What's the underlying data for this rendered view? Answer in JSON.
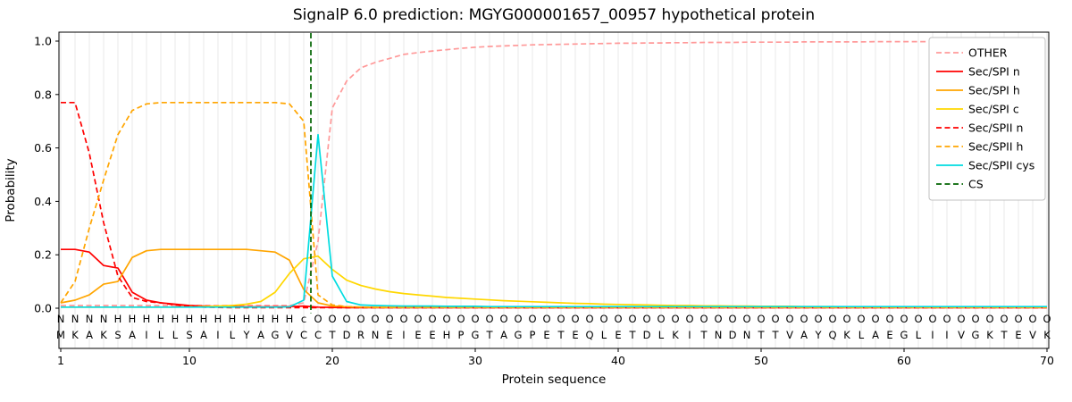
{
  "chart_data": {
    "type": "line",
    "title": "SignalP 6.0 prediction: MGYG000001657_00957 hypothetical protein",
    "xlabel": "Protein sequence",
    "ylabel": "Probability",
    "xticks": [
      1,
      10,
      20,
      30,
      40,
      50,
      60,
      70
    ],
    "yticks": [
      0.0,
      0.2,
      0.4,
      0.6,
      0.8,
      1.0
    ],
    "ylim": [
      -0.16,
      1.03
    ],
    "grid": "vertical-per-residue",
    "legend_position": "upper right",
    "colors": {
      "grid": "#e8e8e8"
    },
    "sequence": "MKAKSAILLSAILYAGVCCTDRNEIEEHPGTAGPETEQLETDLKITNDNTTVAYQKLAEGLIIVGKTEVK",
    "region_annotation": "NNNNHHHHHHHHHHHHHcOOOOOOOOOOOOOOOOOOOOOOOOOOOOOOOOOOOOOOOOOOOOOOOOOOOO",
    "annotation_colors": {
      "N": "#ff0000",
      "H": "#ffa500",
      "c": "#00dce0",
      "O": "#8c8c8c"
    },
    "cs_label": "CS",
    "cs_color": "#006400",
    "cs_position": 18.5,
    "series": [
      {
        "name": "OTHER",
        "color": "#ff9999",
        "dash": true,
        "values": [
          0.01,
          0.01,
          0.01,
          0.01,
          0.01,
          0.01,
          0.01,
          0.01,
          0.01,
          0.01,
          0.01,
          0.01,
          0.01,
          0.01,
          0.01,
          0.01,
          0.01,
          0.02,
          0.25,
          0.75,
          0.85,
          0.9,
          0.92,
          0.935,
          0.95,
          0.957,
          0.963,
          0.968,
          0.973,
          0.977,
          0.98,
          0.982,
          0.984,
          0.986,
          0.987,
          0.988,
          0.989,
          0.99,
          0.991,
          0.992,
          0.992,
          0.993,
          0.993,
          0.994,
          0.994,
          0.995,
          0.995,
          0.995,
          0.996,
          0.996,
          0.996,
          0.996,
          0.997,
          0.997,
          0.997,
          0.997,
          0.997,
          0.998,
          0.998,
          0.998,
          0.998,
          0.998,
          0.998,
          0.998,
          0.998,
          0.998,
          0.998,
          0.998,
          0.998,
          0.998
        ]
      },
      {
        "name": "Sec/SPI n",
        "color": "#ff0000",
        "dash": false,
        "values": [
          0.22,
          0.22,
          0.21,
          0.16,
          0.15,
          0.06,
          0.03,
          0.02,
          0.015,
          0.01,
          0.008,
          0.007,
          0.006,
          0.005,
          0.005,
          0.005,
          0.006,
          0.008,
          0.004,
          0.003,
          0.002,
          0.002,
          0.002,
          0.002,
          0.002,
          0.002,
          0.002,
          0.002,
          0.002,
          0.002,
          0.002,
          0.002,
          0.002,
          0.002,
          0.002,
          0.002,
          0.002,
          0.002,
          0.002,
          0.002,
          0.002,
          0.002,
          0.002,
          0.002,
          0.002,
          0.002,
          0.002,
          0.002,
          0.002,
          0.002,
          0.002,
          0.002,
          0.002,
          0.002,
          0.002,
          0.002,
          0.002,
          0.002,
          0.002,
          0.002,
          0.002,
          0.002,
          0.002,
          0.002,
          0.002,
          0.002,
          0.002,
          0.002,
          0.002,
          0.002
        ]
      },
      {
        "name": "Sec/SPI h",
        "color": "#ffa500",
        "dash": false,
        "values": [
          0.02,
          0.03,
          0.05,
          0.09,
          0.1,
          0.19,
          0.215,
          0.22,
          0.22,
          0.22,
          0.22,
          0.22,
          0.22,
          0.22,
          0.215,
          0.21,
          0.18,
          0.07,
          0.02,
          0.008,
          0.005,
          0.004,
          0.003,
          0.003,
          0.003,
          0.003,
          0.003,
          0.003,
          0.003,
          0.003,
          0.003,
          0.003,
          0.003,
          0.003,
          0.003,
          0.003,
          0.003,
          0.003,
          0.003,
          0.003,
          0.003,
          0.003,
          0.003,
          0.003,
          0.003,
          0.003,
          0.003,
          0.003,
          0.003,
          0.003,
          0.003,
          0.003,
          0.003,
          0.003,
          0.003,
          0.003,
          0.003,
          0.003,
          0.003,
          0.003,
          0.003,
          0.003,
          0.003,
          0.003,
          0.003,
          0.003,
          0.003,
          0.003,
          0.003,
          0.003
        ]
      },
      {
        "name": "Sec/SPI c",
        "color": "#ffd700",
        "dash": false,
        "values": [
          0.004,
          0.004,
          0.004,
          0.004,
          0.004,
          0.004,
          0.004,
          0.004,
          0.004,
          0.005,
          0.006,
          0.008,
          0.01,
          0.015,
          0.025,
          0.06,
          0.13,
          0.185,
          0.195,
          0.145,
          0.105,
          0.085,
          0.072,
          0.062,
          0.055,
          0.05,
          0.045,
          0.04,
          0.037,
          0.034,
          0.031,
          0.028,
          0.026,
          0.024,
          0.022,
          0.02,
          0.018,
          0.017,
          0.015,
          0.014,
          0.013,
          0.012,
          0.011,
          0.01,
          0.01,
          0.009,
          0.009,
          0.008,
          0.008,
          0.007,
          0.007,
          0.007,
          0.006,
          0.006,
          0.006,
          0.005,
          0.005,
          0.005,
          0.005,
          0.005,
          0.004,
          0.004,
          0.004,
          0.004,
          0.004,
          0.004,
          0.004,
          0.004,
          0.004,
          0.004
        ]
      },
      {
        "name": "Sec/SPII n",
        "color": "#ff0000",
        "dash": true,
        "values": [
          0.77,
          0.77,
          0.58,
          0.32,
          0.12,
          0.04,
          0.025,
          0.02,
          0.012,
          0.006,
          0.004,
          0.003,
          0.002,
          0.002,
          0.002,
          0.002,
          0.002,
          0.002,
          0.002,
          0.002,
          0.002,
          0.002,
          0.002,
          0.002,
          0.002,
          0.002,
          0.002,
          0.002,
          0.002,
          0.002,
          0.002,
          0.002,
          0.002,
          0.002,
          0.002,
          0.002,
          0.002,
          0.002,
          0.002,
          0.002,
          0.002,
          0.002,
          0.002,
          0.002,
          0.002,
          0.002,
          0.002,
          0.002,
          0.002,
          0.002,
          0.002,
          0.002,
          0.002,
          0.002,
          0.002,
          0.002,
          0.002,
          0.002,
          0.002,
          0.002,
          0.002,
          0.002,
          0.002,
          0.002,
          0.002,
          0.002,
          0.002,
          0.002,
          0.002,
          0.002
        ]
      },
      {
        "name": "Sec/SPII h",
        "color": "#ffa500",
        "dash": true,
        "values": [
          0.02,
          0.1,
          0.3,
          0.48,
          0.65,
          0.74,
          0.765,
          0.77,
          0.77,
          0.77,
          0.77,
          0.77,
          0.77,
          0.77,
          0.77,
          0.77,
          0.765,
          0.7,
          0.05,
          0.012,
          0.006,
          0.004,
          0.003,
          0.003,
          0.003,
          0.003,
          0.003,
          0.003,
          0.003,
          0.003,
          0.003,
          0.003,
          0.003,
          0.003,
          0.003,
          0.003,
          0.003,
          0.003,
          0.003,
          0.003,
          0.003,
          0.003,
          0.003,
          0.003,
          0.003,
          0.003,
          0.003,
          0.003,
          0.003,
          0.003,
          0.003,
          0.003,
          0.003,
          0.003,
          0.003,
          0.003,
          0.003,
          0.003,
          0.003,
          0.003,
          0.003,
          0.003,
          0.003,
          0.003,
          0.003,
          0.003,
          0.003,
          0.003,
          0.003,
          0.003
        ]
      },
      {
        "name": "Sec/SPII cys",
        "color": "#00dce0",
        "dash": false,
        "values": [
          0.004,
          0.004,
          0.004,
          0.004,
          0.004,
          0.004,
          0.004,
          0.004,
          0.004,
          0.004,
          0.004,
          0.004,
          0.004,
          0.004,
          0.004,
          0.004,
          0.005,
          0.03,
          0.65,
          0.12,
          0.025,
          0.012,
          0.01,
          0.009,
          0.008,
          0.008,
          0.008,
          0.007,
          0.007,
          0.007,
          0.006,
          0.006,
          0.006,
          0.006,
          0.006,
          0.006,
          0.006,
          0.006,
          0.006,
          0.006,
          0.006,
          0.006,
          0.006,
          0.006,
          0.006,
          0.006,
          0.006,
          0.006,
          0.006,
          0.006,
          0.006,
          0.006,
          0.006,
          0.006,
          0.006,
          0.006,
          0.006,
          0.006,
          0.006,
          0.006,
          0.006,
          0.006,
          0.006,
          0.006,
          0.006,
          0.006,
          0.006,
          0.006,
          0.006,
          0.006
        ]
      }
    ]
  }
}
